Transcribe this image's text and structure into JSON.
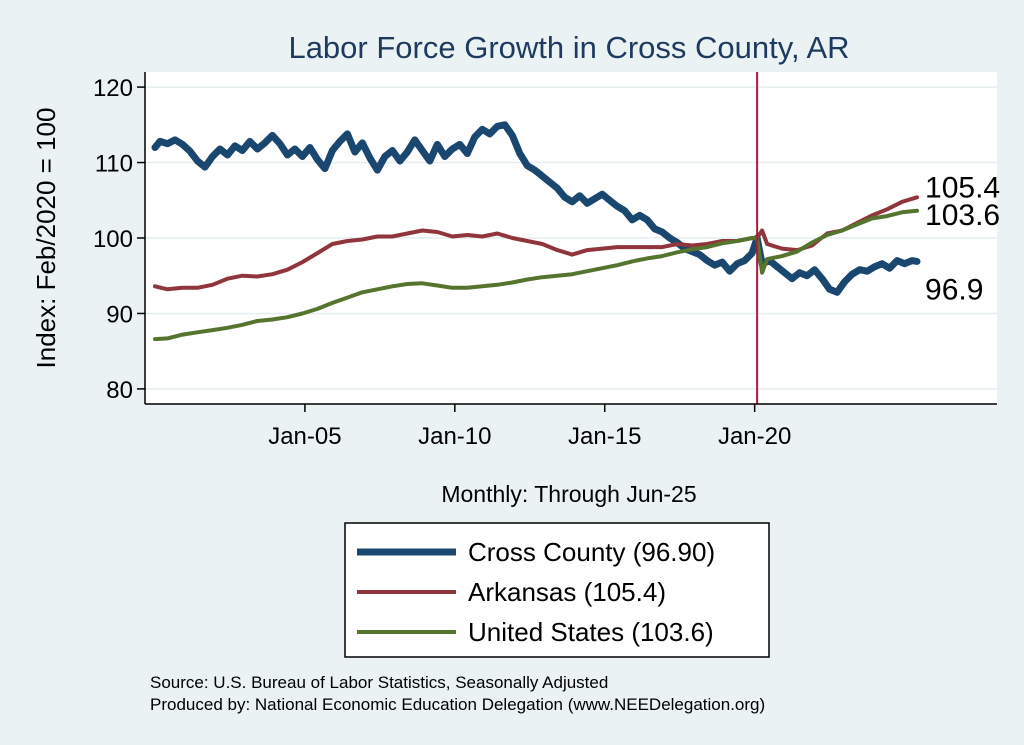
{
  "chart_data": {
    "type": "line",
    "title": "Labor Force Growth in Cross  County, AR",
    "ylabel": "Index: Feb/2020 = 100",
    "xlabel": "Monthly: Through Jun-25",
    "ylim": [
      78,
      122
    ],
    "yticks": [
      80,
      90,
      100,
      110,
      120
    ],
    "xlim": [
      "1999-09",
      "2028-02"
    ],
    "xticks": [
      {
        "date": "2005-01",
        "label": "Jan-05"
      },
      {
        "date": "2010-01",
        "label": "Jan-10"
      },
      {
        "date": "2015-01",
        "label": "Jan-15"
      },
      {
        "date": "2020-01",
        "label": "Jan-20"
      }
    ],
    "reference_line": {
      "date": "2020-02",
      "color": "#b0193a"
    },
    "grid": true,
    "legend_position": "bottom",
    "series": [
      {
        "name": "Cross  County (96.90)",
        "end_label": "96.9",
        "color": "#1a476f",
        "points": [
          [
            "2000-01",
            112.0
          ],
          [
            "2000-03",
            112.8
          ],
          [
            "2000-06",
            112.5
          ],
          [
            "2000-09",
            113.0
          ],
          [
            "2000-12",
            112.4
          ],
          [
            "2001-03",
            111.5
          ],
          [
            "2001-06",
            110.2
          ],
          [
            "2001-09",
            109.4
          ],
          [
            "2001-12",
            110.8
          ],
          [
            "2002-03",
            111.8
          ],
          [
            "2002-06",
            111.0
          ],
          [
            "2002-09",
            112.2
          ],
          [
            "2002-12",
            111.6
          ],
          [
            "2003-03",
            112.8
          ],
          [
            "2003-06",
            111.8
          ],
          [
            "2003-09",
            112.6
          ],
          [
            "2003-12",
            113.6
          ],
          [
            "2004-03",
            112.5
          ],
          [
            "2004-06",
            111.0
          ],
          [
            "2004-09",
            111.8
          ],
          [
            "2004-12",
            110.8
          ],
          [
            "2005-03",
            112.0
          ],
          [
            "2005-06",
            110.4
          ],
          [
            "2005-09",
            109.2
          ],
          [
            "2005-12",
            111.6
          ],
          [
            "2006-03",
            112.8
          ],
          [
            "2006-06",
            113.8
          ],
          [
            "2006-09",
            111.4
          ],
          [
            "2006-12",
            112.6
          ],
          [
            "2007-03",
            110.6
          ],
          [
            "2007-06",
            109.0
          ],
          [
            "2007-09",
            110.8
          ],
          [
            "2007-12",
            111.6
          ],
          [
            "2008-03",
            110.2
          ],
          [
            "2008-06",
            111.4
          ],
          [
            "2008-09",
            113.0
          ],
          [
            "2008-12",
            111.6
          ],
          [
            "2009-03",
            110.2
          ],
          [
            "2009-06",
            112.4
          ],
          [
            "2009-09",
            110.8
          ],
          [
            "2009-12",
            111.8
          ],
          [
            "2010-03",
            112.4
          ],
          [
            "2010-06",
            111.2
          ],
          [
            "2010-09",
            113.4
          ],
          [
            "2010-12",
            114.4
          ],
          [
            "2011-03",
            113.8
          ],
          [
            "2011-06",
            114.8
          ],
          [
            "2011-09",
            115.0
          ],
          [
            "2011-12",
            113.6
          ],
          [
            "2012-03",
            111.2
          ],
          [
            "2012-06",
            109.6
          ],
          [
            "2012-09",
            109.0
          ],
          [
            "2012-12",
            108.2
          ],
          [
            "2013-03",
            107.4
          ],
          [
            "2013-06",
            106.6
          ],
          [
            "2013-09",
            105.4
          ],
          [
            "2013-12",
            104.8
          ],
          [
            "2014-03",
            105.6
          ],
          [
            "2014-06",
            104.6
          ],
          [
            "2014-09",
            105.2
          ],
          [
            "2014-12",
            105.8
          ],
          [
            "2015-03",
            105.0
          ],
          [
            "2015-06",
            104.2
          ],
          [
            "2015-09",
            103.6
          ],
          [
            "2015-12",
            102.4
          ],
          [
            "2016-03",
            103.0
          ],
          [
            "2016-06",
            102.4
          ],
          [
            "2016-09",
            101.2
          ],
          [
            "2016-12",
            100.8
          ],
          [
            "2017-03",
            100.0
          ],
          [
            "2017-06",
            99.4
          ],
          [
            "2017-09",
            98.6
          ],
          [
            "2017-12",
            98.2
          ],
          [
            "2018-03",
            97.8
          ],
          [
            "2018-06",
            97.0
          ],
          [
            "2018-09",
            96.4
          ],
          [
            "2018-12",
            96.8
          ],
          [
            "2019-03",
            95.6
          ],
          [
            "2019-06",
            96.6
          ],
          [
            "2019-09",
            97.0
          ],
          [
            "2019-12",
            98.0
          ],
          [
            "2020-02",
            100.0
          ],
          [
            "2020-04",
            96.6
          ],
          [
            "2020-07",
            97.0
          ],
          [
            "2020-10",
            96.2
          ],
          [
            "2021-01",
            95.4
          ],
          [
            "2021-04",
            94.6
          ],
          [
            "2021-07",
            95.4
          ],
          [
            "2021-10",
            95.0
          ],
          [
            "2022-01",
            95.8
          ],
          [
            "2022-04",
            94.6
          ],
          [
            "2022-07",
            93.2
          ],
          [
            "2022-10",
            92.8
          ],
          [
            "2023-01",
            94.2
          ],
          [
            "2023-04",
            95.2
          ],
          [
            "2023-07",
            95.8
          ],
          [
            "2023-10",
            95.6
          ],
          [
            "2024-01",
            96.2
          ],
          [
            "2024-04",
            96.6
          ],
          [
            "2024-07",
            96.0
          ],
          [
            "2024-10",
            97.0
          ],
          [
            "2025-01",
            96.6
          ],
          [
            "2025-04",
            97.0
          ],
          [
            "2025-06",
            96.9
          ]
        ]
      },
      {
        "name": "Arkansas (105.4)",
        "end_label": "105.4",
        "color": "#90353b",
        "points": [
          [
            "2000-01",
            93.6
          ],
          [
            "2000-06",
            93.2
          ],
          [
            "2000-12",
            93.4
          ],
          [
            "2001-06",
            93.4
          ],
          [
            "2001-12",
            93.8
          ],
          [
            "2002-06",
            94.6
          ],
          [
            "2002-12",
            95.0
          ],
          [
            "2003-06",
            94.9
          ],
          [
            "2003-12",
            95.2
          ],
          [
            "2004-06",
            95.8
          ],
          [
            "2004-12",
            96.8
          ],
          [
            "2005-06",
            98.0
          ],
          [
            "2005-12",
            99.2
          ],
          [
            "2006-06",
            99.6
          ],
          [
            "2006-12",
            99.8
          ],
          [
            "2007-06",
            100.2
          ],
          [
            "2007-12",
            100.2
          ],
          [
            "2008-06",
            100.6
          ],
          [
            "2008-12",
            101.0
          ],
          [
            "2009-06",
            100.8
          ],
          [
            "2009-12",
            100.2
          ],
          [
            "2010-06",
            100.4
          ],
          [
            "2010-12",
            100.2
          ],
          [
            "2011-06",
            100.6
          ],
          [
            "2011-12",
            100.0
          ],
          [
            "2012-06",
            99.6
          ],
          [
            "2012-12",
            99.2
          ],
          [
            "2013-06",
            98.4
          ],
          [
            "2013-12",
            97.8
          ],
          [
            "2014-06",
            98.4
          ],
          [
            "2014-12",
            98.6
          ],
          [
            "2015-06",
            98.8
          ],
          [
            "2015-12",
            98.8
          ],
          [
            "2016-06",
            98.8
          ],
          [
            "2016-12",
            98.8
          ],
          [
            "2017-06",
            99.2
          ],
          [
            "2017-12",
            99.0
          ],
          [
            "2018-06",
            99.2
          ],
          [
            "2018-12",
            99.6
          ],
          [
            "2019-06",
            99.6
          ],
          [
            "2019-12",
            100.0
          ],
          [
            "2020-02",
            100.0
          ],
          [
            "2020-04",
            101.0
          ],
          [
            "2020-06",
            99.2
          ],
          [
            "2020-12",
            98.6
          ],
          [
            "2021-06",
            98.4
          ],
          [
            "2021-12",
            99.0
          ],
          [
            "2022-06",
            100.6
          ],
          [
            "2022-12",
            101.0
          ],
          [
            "2023-06",
            102.0
          ],
          [
            "2023-12",
            103.0
          ],
          [
            "2024-06",
            103.8
          ],
          [
            "2024-12",
            104.8
          ],
          [
            "2025-06",
            105.4
          ]
        ]
      },
      {
        "name": "United States (103.6)",
        "end_label": "103.6",
        "color": "#55752f",
        "points": [
          [
            "2000-01",
            86.6
          ],
          [
            "2000-06",
            86.7
          ],
          [
            "2000-12",
            87.2
          ],
          [
            "2001-06",
            87.5
          ],
          [
            "2001-12",
            87.8
          ],
          [
            "2002-06",
            88.1
          ],
          [
            "2002-12",
            88.5
          ],
          [
            "2003-06",
            89.0
          ],
          [
            "2003-12",
            89.2
          ],
          [
            "2004-06",
            89.5
          ],
          [
            "2004-12",
            90.0
          ],
          [
            "2005-06",
            90.6
          ],
          [
            "2005-12",
            91.4
          ],
          [
            "2006-06",
            92.1
          ],
          [
            "2006-12",
            92.8
          ],
          [
            "2007-06",
            93.2
          ],
          [
            "2007-12",
            93.6
          ],
          [
            "2008-06",
            93.9
          ],
          [
            "2008-12",
            94.0
          ],
          [
            "2009-06",
            93.7
          ],
          [
            "2009-12",
            93.4
          ],
          [
            "2010-06",
            93.4
          ],
          [
            "2010-12",
            93.6
          ],
          [
            "2011-06",
            93.8
          ],
          [
            "2011-12",
            94.1
          ],
          [
            "2012-06",
            94.5
          ],
          [
            "2012-12",
            94.8
          ],
          [
            "2013-06",
            95.0
          ],
          [
            "2013-12",
            95.2
          ],
          [
            "2014-06",
            95.6
          ],
          [
            "2014-12",
            96.0
          ],
          [
            "2015-06",
            96.4
          ],
          [
            "2015-12",
            96.9
          ],
          [
            "2016-06",
            97.3
          ],
          [
            "2016-12",
            97.6
          ],
          [
            "2017-06",
            98.1
          ],
          [
            "2017-12",
            98.5
          ],
          [
            "2018-06",
            98.8
          ],
          [
            "2018-12",
            99.3
          ],
          [
            "2019-06",
            99.6
          ],
          [
            "2019-12",
            100.0
          ],
          [
            "2020-02",
            100.0
          ],
          [
            "2020-04",
            95.4
          ],
          [
            "2020-06",
            97.2
          ],
          [
            "2020-12",
            97.6
          ],
          [
            "2021-06",
            98.2
          ],
          [
            "2021-12",
            99.4
          ],
          [
            "2022-06",
            100.4
          ],
          [
            "2022-12",
            101.0
          ],
          [
            "2023-06",
            101.8
          ],
          [
            "2023-12",
            102.6
          ],
          [
            "2024-06",
            102.9
          ],
          [
            "2024-12",
            103.4
          ],
          [
            "2025-06",
            103.6
          ]
        ]
      }
    ],
    "source_lines": [
      "Source: U.S. Bureau of Labor Statistics, Seasonally Adjusted",
      "Produced by: National Economic Education Delegation (www.NEEDelegation.org)"
    ]
  }
}
